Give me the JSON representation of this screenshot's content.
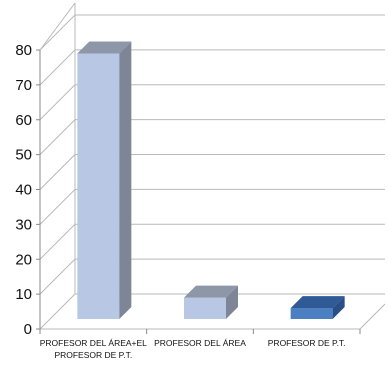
{
  "chart_data": {
    "type": "bar",
    "style": "3d-column",
    "categories": [
      [
        "PROFESOR DEL ÁREA+EL",
        "PROFESOR DE P.T."
      ],
      [
        "PROFESOR DEL ÁREA"
      ],
      [
        "PROFESOR DE P.T."
      ]
    ],
    "values": [
      79,
      9,
      6
    ],
    "ylim": [
      0,
      80
    ],
    "yticks": [
      0,
      10,
      20,
      30,
      40,
      50,
      60,
      70,
      80
    ],
    "grid": true,
    "legend": "none",
    "colors": {
      "bars": [
        {
          "front": "#b8c7e3",
          "side": "#7d8596",
          "top": "#8e97a8"
        },
        {
          "front": "#b8c7e3",
          "side": "#7d8596",
          "top": "#8e97a8"
        },
        {
          "front": "#4a7fc1",
          "side": "#2a4f86",
          "top": "#2f5a96"
        }
      ],
      "grid": "#b9b9b9",
      "axis": "#888888"
    }
  }
}
